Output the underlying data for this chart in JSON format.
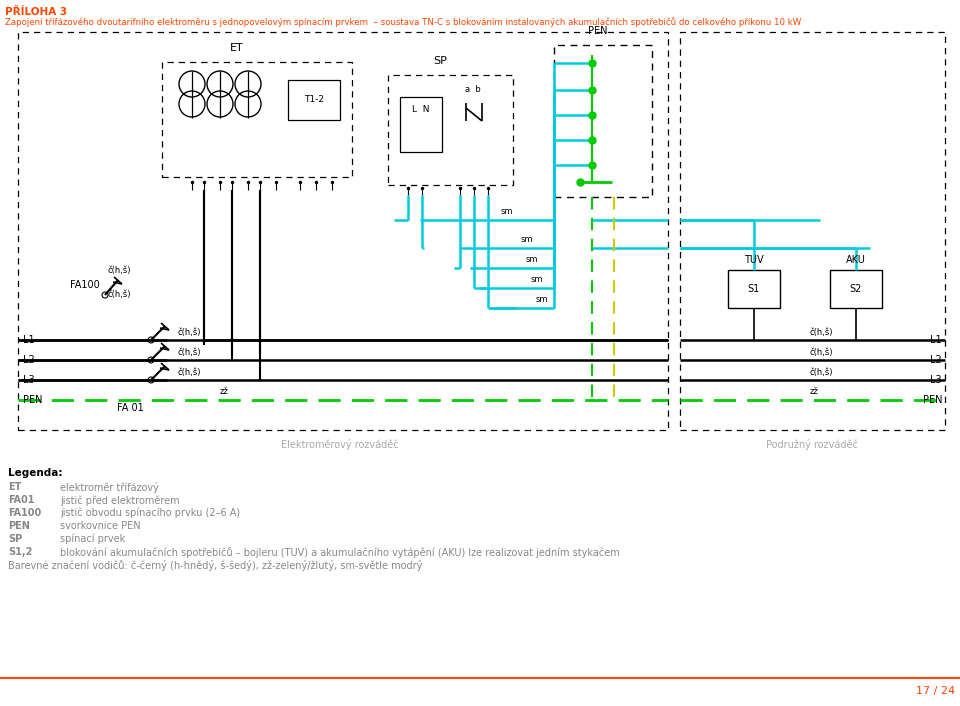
{
  "title_line1": "PŘÍLOHA 3",
  "title_line2": "Zapojení třífázového dvoutarifního elektroměru s jednopovelovým spínacím prvkem  – soustava TN-C s blokováním instalovaných akumulačních spotřebičů do celkového příkonu 10 kW",
  "orange": "#FF4500",
  "black": "#000000",
  "cyan": "#00CCDD",
  "green": "#00CC00",
  "gray": "#888888",
  "lgray": "#AAAAAA",
  "white": "#FFFFFF",
  "page_num": "17 / 24",
  "legend_bold": "Legenda:",
  "legend_items": [
    [
      "ET",
      "elektroměr třífázový"
    ],
    [
      "FA01",
      "jistič před elektroměrem"
    ],
    [
      "FA100",
      "jistič obvodu spínacího prvku (2–6 A)"
    ],
    [
      "PEN",
      "svorkovnice PEN"
    ],
    [
      "SP",
      "spínací prvek"
    ],
    [
      "S1,2",
      "blokování akumulačních spotřebičů – bojleru (TUV) a akumulačního vytápění (AKU) lze realizovat jedním stykačem"
    ]
  ],
  "legend_last": "Barevné značení vodičů: č-černý (h-hnědý, š-šedý), zž-zelený/žlutý, sm-světle modrý"
}
